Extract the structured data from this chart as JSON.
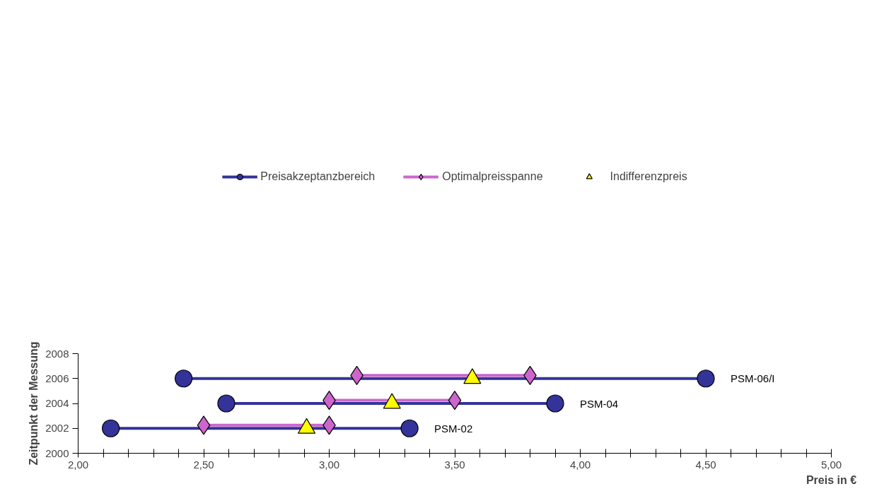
{
  "chart_data": {
    "type": "line",
    "xlabel": "Preis in €",
    "ylabel": "Zeitpunkt der Messung",
    "xlim": [
      2.0,
      5.0
    ],
    "ylim": [
      2000,
      2008
    ],
    "xticks": [
      {
        "value": 2.0,
        "label": "2,00"
      },
      {
        "value": 2.1,
        "label": null
      },
      {
        "value": 2.2,
        "label": null
      },
      {
        "value": 2.3,
        "label": null
      },
      {
        "value": 2.4,
        "label": null
      },
      {
        "value": 2.5,
        "label": "2,50"
      },
      {
        "value": 2.6,
        "label": null
      },
      {
        "value": 2.7,
        "label": null
      },
      {
        "value": 2.8,
        "label": null
      },
      {
        "value": 2.9,
        "label": null
      },
      {
        "value": 3.0,
        "label": "3,00"
      },
      {
        "value": 3.1,
        "label": null
      },
      {
        "value": 3.2,
        "label": null
      },
      {
        "value": 3.3,
        "label": null
      },
      {
        "value": 3.4,
        "label": null
      },
      {
        "value": 3.5,
        "label": "3,50"
      },
      {
        "value": 3.6,
        "label": null
      },
      {
        "value": 3.7,
        "label": null
      },
      {
        "value": 3.8,
        "label": null
      },
      {
        "value": 3.9,
        "label": null
      },
      {
        "value": 4.0,
        "label": "4,00"
      },
      {
        "value": 4.1,
        "label": null
      },
      {
        "value": 4.2,
        "label": null
      },
      {
        "value": 4.3,
        "label": null
      },
      {
        "value": 4.4,
        "label": null
      },
      {
        "value": 4.5,
        "label": "4,50"
      },
      {
        "value": 4.6,
        "label": null
      },
      {
        "value": 4.7,
        "label": null
      },
      {
        "value": 4.8,
        "label": null
      },
      {
        "value": 4.9,
        "label": null
      },
      {
        "value": 5.0,
        "label": "5,00"
      }
    ],
    "yticks": [
      2000,
      2002,
      2004,
      2006,
      2008
    ],
    "grid": false,
    "legend": "top",
    "series": [
      {
        "name": "Preisakzeptanzbereich",
        "marker": "circle",
        "color": "#333399",
        "x": [
          2.42,
          4.5,
          null,
          2.59,
          3.9,
          null,
          2.13,
          3.32
        ],
        "values": [
          2006,
          2006,
          null,
          2004,
          2004,
          null,
          2002,
          2002
        ]
      },
      {
        "name": "Optimalpreisspanne",
        "marker": "diamond",
        "color": "#cc66cc",
        "x": [
          3.11,
          3.8,
          null,
          3.0,
          3.5,
          null,
          2.5,
          3.0
        ],
        "values": [
          2006.25,
          2006.25,
          null,
          2004.25,
          2004.25,
          null,
          2002.25,
          2002.25
        ]
      },
      {
        "name": "Indifferenzpreis",
        "type": "scatter",
        "marker": "triangle",
        "color": "#ffff00",
        "x": [
          3.57,
          3.25,
          2.91
        ],
        "values": [
          2006,
          2004,
          2002
        ]
      }
    ],
    "annotations": [
      {
        "text": "PSM-06/I",
        "x": 4.5,
        "y": 2006
      },
      {
        "text": "PSM-04",
        "x": 3.9,
        "y": 2004
      },
      {
        "text": "PSM-02",
        "x": 3.32,
        "y": 2002
      }
    ]
  }
}
